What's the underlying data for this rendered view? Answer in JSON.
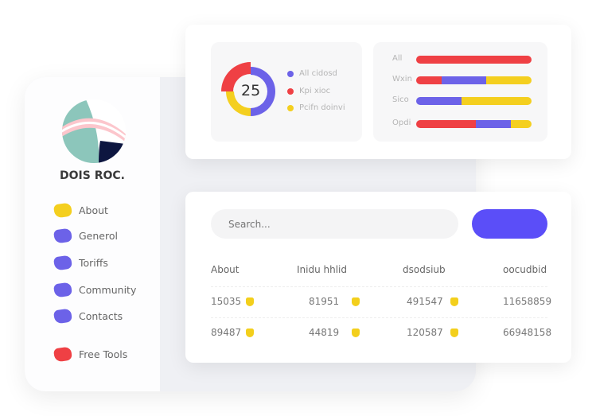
{
  "colors": {
    "red": "#ef4044",
    "blue": "#6c62e8",
    "yellow": "#f4cf1f",
    "accent": "#5b4ef8"
  },
  "sidebar": {
    "brand": "DOIS ROC.",
    "items": [
      {
        "label": "About",
        "color": "#f4cf1f"
      },
      {
        "label": "Generol",
        "color": "#6c62e8"
      },
      {
        "label": "Toriffs",
        "color": "#6c62e8"
      },
      {
        "label": "Community",
        "color": "#6c62e8"
      },
      {
        "label": "Contacts",
        "color": "#6c62e8"
      },
      {
        "label": "Free Tools",
        "color": "#ef4044"
      }
    ]
  },
  "donut": {
    "center_value": "25",
    "segments": [
      {
        "label": "All cidosd",
        "percent": 50,
        "color": "#6c62e8"
      },
      {
        "label": "Kpi xioc",
        "percent": 25,
        "color": "#ef4044"
      },
      {
        "label": "Pcifn doinvi",
        "percent": 25,
        "color": "#f4cf1f"
      }
    ]
  },
  "bars": [
    {
      "label": "All",
      "segments": [
        {
          "color": "#ef4044",
          "percent": 100
        }
      ]
    },
    {
      "label": "Wxin",
      "segments": [
        {
          "color": "#ef4044",
          "percent": 22
        },
        {
          "color": "#6c62e8",
          "percent": 39
        },
        {
          "color": "#f4cf1f",
          "percent": 39
        }
      ]
    },
    {
      "label": "Sico",
      "segments": [
        {
          "color": "#6c62e8",
          "percent": 39
        },
        {
          "color": "#f4cf1f",
          "percent": 61
        }
      ]
    },
    {
      "label": "Opdi",
      "segments": [
        {
          "color": "#ef4044",
          "percent": 52
        },
        {
          "color": "#6c62e8",
          "percent": 30
        },
        {
          "color": "#f4cf1f",
          "percent": 18
        }
      ]
    }
  ],
  "search": {
    "placeholder": "Search..."
  },
  "table": {
    "headers": [
      "About",
      "Inidu hhlid",
      "dsodsiub",
      "oocudbid"
    ],
    "rows": [
      [
        "15035",
        "81951",
        "491547",
        "11658859"
      ],
      [
        "89487",
        "44819",
        "120587",
        "66948158"
      ]
    ]
  }
}
